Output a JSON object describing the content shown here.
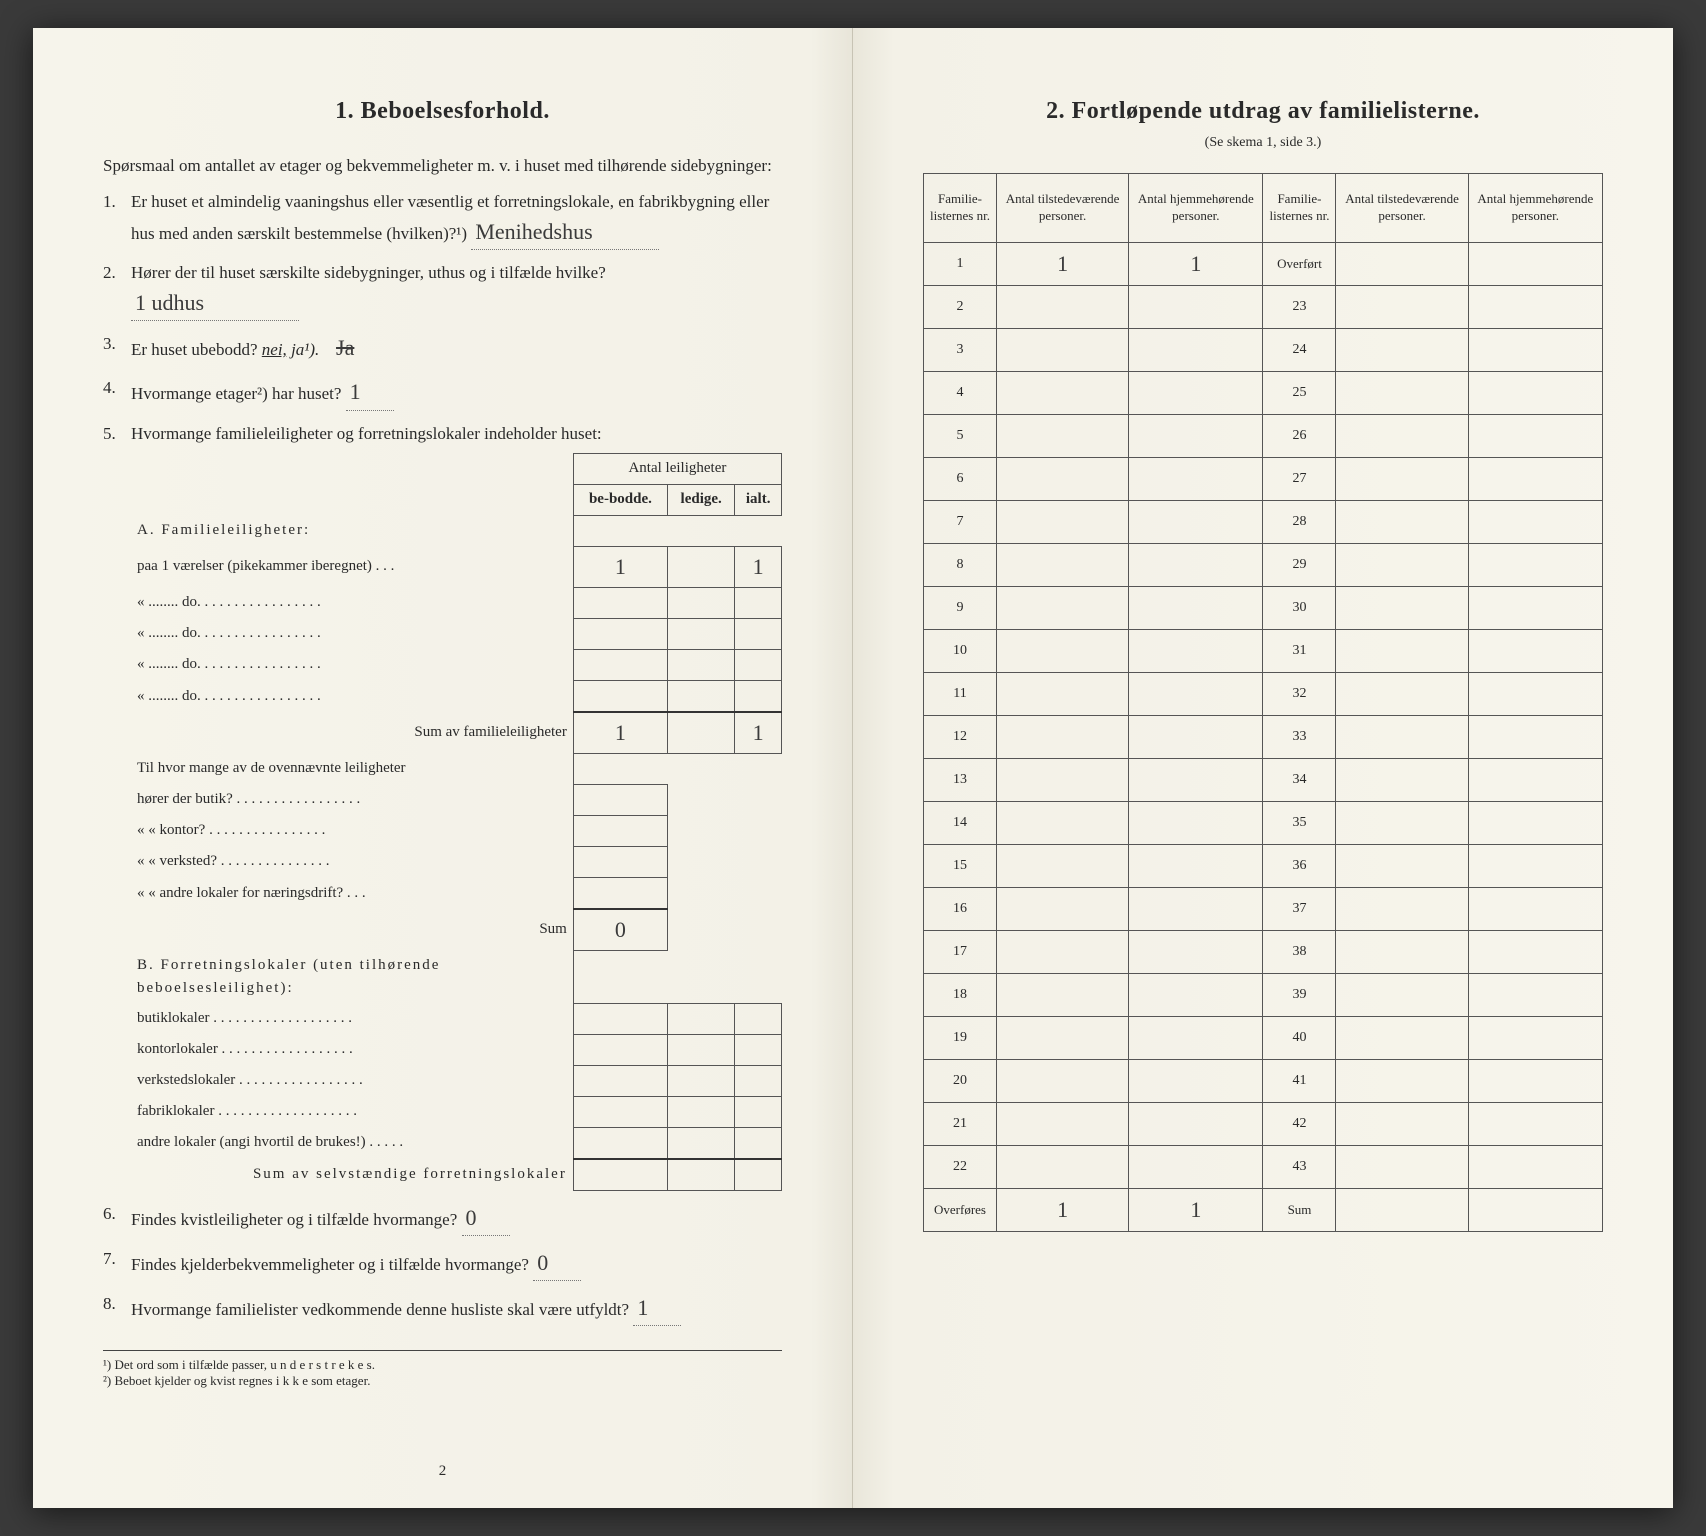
{
  "left": {
    "title": "1.   Beboelsesforhold.",
    "intro": "Spørsmaal om antallet av etager og bekvemmeligheter m. v. i huset med tilhørende sidebygninger:",
    "q1": "Er huset et almindelig vaaningshus eller væsentlig et forretningslokale, en fabrikbygning eller hus med anden særskilt bestemmelse (hvilken)?¹)",
    "q1_answer": "Menihedshus",
    "q2": "Hører der til huset særskilte sidebygninger, uthus og i tilfælde hvilke?",
    "q2_answer": "1  udhus",
    "q3": "Er huset ubebodd?",
    "q3_nei": "nei,",
    "q3_ja": "ja¹).",
    "q4": "Hvormange etager²) har huset?",
    "q4_answer": "1",
    "q5": "Hvormange familieleiligheter og forretningslokaler indeholder huset:",
    "t5": {
      "head_group": "Antal leiligheter",
      "head_be": "be-bodde.",
      "head_led": "ledige.",
      "head_ialt": "ialt.",
      "A_label": "A. Familieleiligheter:",
      "A_r1": "paa 1   værelser (pikekammer iberegnet) . . .",
      "A_r1_be": "1",
      "A_r1_ialt": "1",
      "A_do": "«  ........   do.   . . . . . . . . . . . . . . . .",
      "A_sum": "Sum av familieleiligheter",
      "A_sum_be": "1",
      "A_sum_ialt": "1",
      "mid1": "Til hvor mange av de ovennævnte leiligheter",
      "mid2": "hører der butik? . . . . . . . . . . . . . . . . .",
      "mid3": "«     «  kontor? . . . . . . . . . . . . . . . .",
      "mid4": "«     «  verksted? . . . . . . . . . . . . . . .",
      "mid5": "«     «  andre lokaler for næringsdrift? . . .",
      "mid_sum": "Sum",
      "mid_sum_val": "0",
      "B_label": "B. Forretningslokaler (uten tilhørende beboelsesleilighet):",
      "B_r1": "butiklokaler . . . . . . . . . . . . . . . . . . .",
      "B_r2": "kontorlokaler  . . . . . . . . . . . . . . . . . .",
      "B_r3": "verkstedslokaler . . . . . . . . . . . . . . . . .",
      "B_r4": "fabriklokaler . . . . . . . . . . . . . . . . . . .",
      "B_r5": "andre lokaler (angi hvortil de brukes!) . . . . .",
      "B_sum": "Sum av selvstændige forretningslokaler"
    },
    "q6": "Findes kvistleiligheter og i tilfælde hvormange?",
    "q6_answer": "0",
    "q7": "Findes kjelderbekvemmeligheter og i tilfælde hvormange?",
    "q7_answer": "0",
    "q8": "Hvormange familielister vedkommende denne husliste skal være utfyldt?",
    "q8_answer": "1",
    "fn1": "¹)  Det ord som i tilfælde passer,  u n d e r s t r e k e s.",
    "fn2": "²)  Beboet kjelder og kvist regnes  i k k e  som etager.",
    "pageno": "2"
  },
  "right": {
    "title": "2.   Fortløpende utdrag av familielisterne.",
    "sub": "(Se skema 1, side 3.)",
    "head_nr": "Familie-listernes nr.",
    "head_tilst": "Antal tilstedeværende personer.",
    "head_hjem": "Antal hjemmehørende personer.",
    "row1_tilst": "1",
    "row1_hjem": "1",
    "overfort": "Overført",
    "overfores": "Overføres",
    "overfores_tilst": "1",
    "overfores_hjem": "1",
    "sum": "Sum",
    "nums_left": [
      "1",
      "2",
      "3",
      "4",
      "5",
      "6",
      "7",
      "8",
      "9",
      "10",
      "11",
      "12",
      "13",
      "14",
      "15",
      "16",
      "17",
      "18",
      "19",
      "20",
      "21",
      "22"
    ],
    "nums_right": [
      "23",
      "24",
      "25",
      "26",
      "27",
      "28",
      "29",
      "30",
      "31",
      "32",
      "33",
      "34",
      "35",
      "36",
      "37",
      "38",
      "39",
      "40",
      "41",
      "42",
      "43"
    ]
  }
}
